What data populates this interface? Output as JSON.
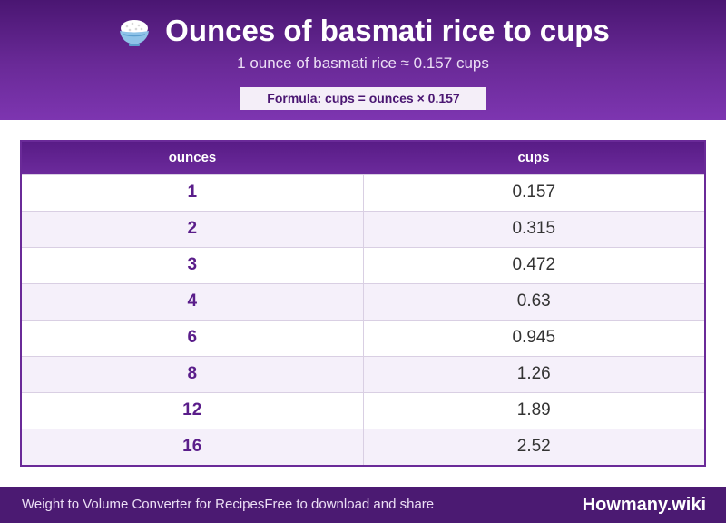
{
  "header": {
    "icon": "rice-bowl-icon",
    "title": "Ounces of basmati rice to cups",
    "subtitle": "1 ounce of basmati rice ≈ 0.157 cups",
    "formula": "Formula: cups = ounces × 0.157"
  },
  "table": {
    "columns": [
      "ounces",
      "cups"
    ],
    "rows": [
      [
        "1",
        "0.157"
      ],
      [
        "2",
        "0.315"
      ],
      [
        "3",
        "0.472"
      ],
      [
        "4",
        "0.63"
      ],
      [
        "6",
        "0.945"
      ],
      [
        "8",
        "1.26"
      ],
      [
        "12",
        "1.89"
      ],
      [
        "16",
        "2.52"
      ]
    ]
  },
  "footer": {
    "left_text": "Weight to Volume Converter for RecipesFree to download and share",
    "brand": "Howmany.wiki"
  },
  "colors": {
    "header_dark": "#4a1672",
    "header_light": "#7d35b0",
    "accent": "#5a1d8a",
    "row_alt": "#f5f0fa",
    "footer": "#4b1a72"
  }
}
